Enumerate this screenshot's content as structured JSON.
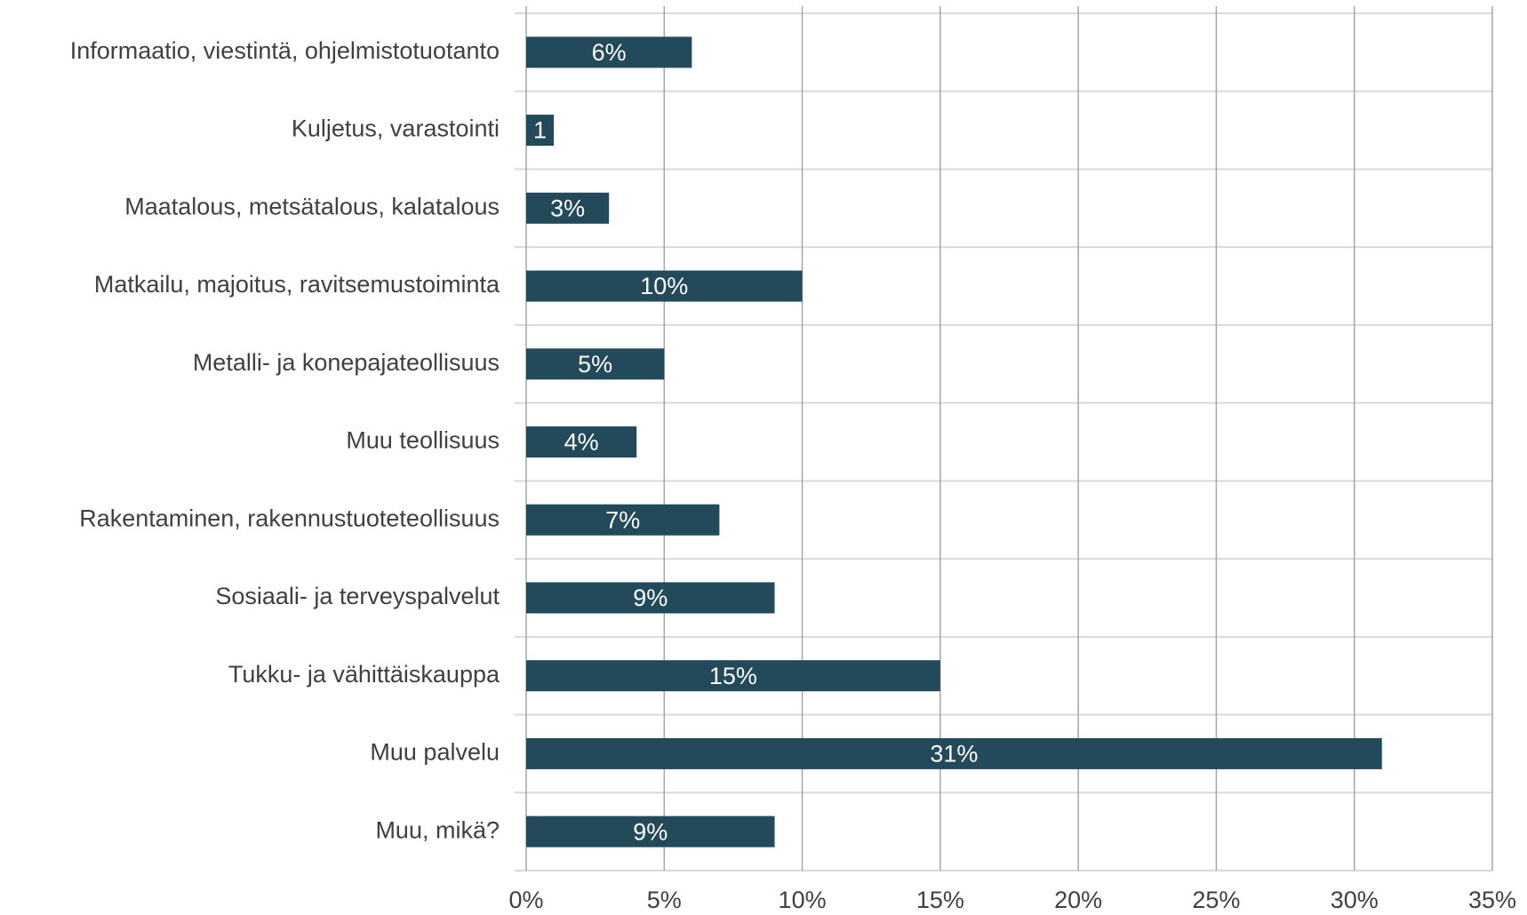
{
  "chart_data": {
    "type": "bar",
    "orientation": "horizontal",
    "categories": [
      "Informaatio, viestintä, ohjelmistotuotanto",
      "Kuljetus, varastointi",
      "Maatalous, metsätalous, kalatalous",
      "Matkailu, majoitus, ravitsemustoiminta",
      "Metalli- ja konepajateollisuus",
      "Muu teollisuus",
      "Rakentaminen, rakennustuoteteollisuus",
      "Sosiaali- ja terveyspalvelut",
      "Tukku- ja vähittäiskauppa",
      "Muu palvelu",
      "Muu, mikä?"
    ],
    "values": [
      6,
      1,
      3,
      10,
      5,
      4,
      7,
      9,
      15,
      31,
      9
    ],
    "value_labels": [
      "6%",
      "1",
      "3%",
      "10%",
      "5%",
      "4%",
      "7%",
      "9%",
      "15%",
      "31%",
      "9%"
    ],
    "color": "#234a5a",
    "xlim": [
      0,
      35
    ],
    "xticks": [
      {
        "value": 0,
        "label": "0%"
      },
      {
        "value": 5,
        "label": "5%"
      },
      {
        "value": 10,
        "label": "10%"
      },
      {
        "value": 15,
        "label": "15%"
      },
      {
        "value": 20,
        "label": "20%"
      },
      {
        "value": 25,
        "label": "25%"
      },
      {
        "value": 30,
        "label": "30%"
      },
      {
        "value": 35,
        "label": "35%"
      }
    ],
    "grid": true
  }
}
